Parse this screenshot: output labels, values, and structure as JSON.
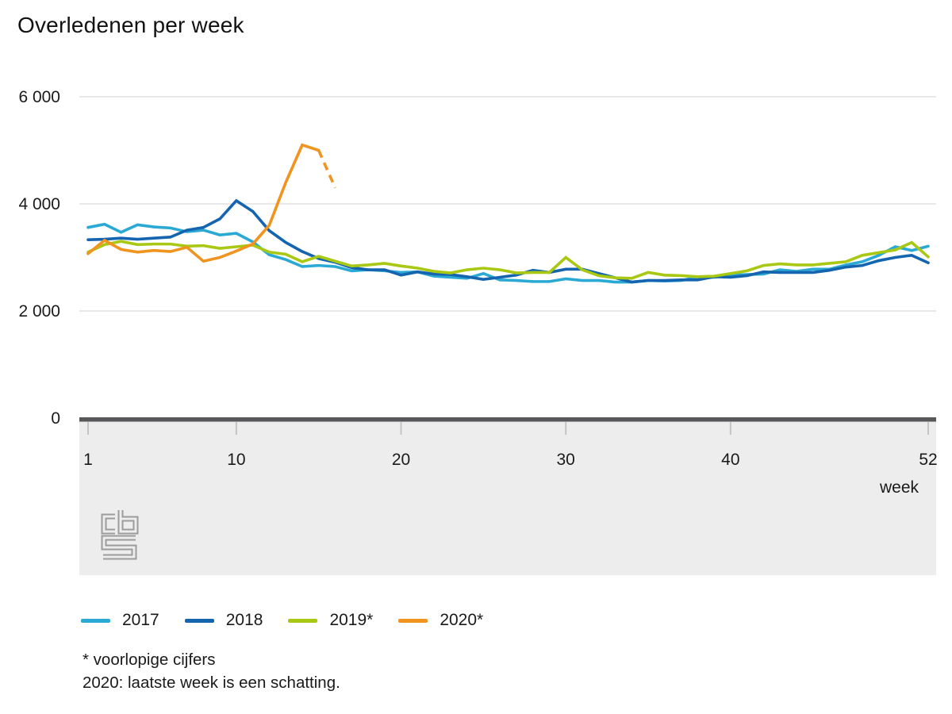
{
  "chart_data": {
    "type": "line",
    "title": "Overledenen per week",
    "xlabel": "week",
    "ylabel": "",
    "xlim": [
      1,
      52
    ],
    "ylim": [
      0,
      6000
    ],
    "grid": "horizontal",
    "grid_values": [
      2000,
      4000,
      6000
    ],
    "legend_position": "bottom",
    "x_ticks": [
      {
        "v": 1,
        "label": "1"
      },
      {
        "v": 10,
        "label": "10"
      },
      {
        "v": 20,
        "label": "20"
      },
      {
        "v": 30,
        "label": "30"
      },
      {
        "v": 40,
        "label": "40"
      },
      {
        "v": 52,
        "label": "52"
      }
    ],
    "y_ticks": [
      {
        "v": 6000,
        "label": "6 000"
      },
      {
        "v": 4000,
        "label": "4 000"
      },
      {
        "v": 2000,
        "label": "2 000"
      },
      {
        "v": 0,
        "label": "0"
      }
    ],
    "series": [
      {
        "name": "2017",
        "color": "#2AA9D4",
        "x_start": 1,
        "values": [
          3560,
          3620,
          3470,
          3610,
          3570,
          3550,
          3480,
          3510,
          3420,
          3450,
          3290,
          3050,
          2960,
          2830,
          2850,
          2830,
          2750,
          2770,
          2750,
          2720,
          2730,
          2650,
          2630,
          2610,
          2700,
          2580,
          2570,
          2550,
          2550,
          2600,
          2570,
          2570,
          2540,
          2540,
          2570,
          2560,
          2570,
          2630,
          2630,
          2670,
          2680,
          2690,
          2770,
          2740,
          2780,
          2780,
          2860,
          2920,
          3040,
          3200,
          3130,
          3210
        ]
      },
      {
        "name": "2018",
        "color": "#1464AF",
        "x_start": 1,
        "values": [
          3330,
          3340,
          3360,
          3340,
          3360,
          3380,
          3510,
          3560,
          3720,
          4060,
          3860,
          3500,
          3280,
          3110,
          2980,
          2910,
          2810,
          2770,
          2770,
          2670,
          2730,
          2690,
          2680,
          2640,
          2590,
          2630,
          2670,
          2760,
          2720,
          2780,
          2780,
          2700,
          2620,
          2540,
          2570,
          2570,
          2580,
          2580,
          2640,
          2630,
          2660,
          2730,
          2720,
          2720,
          2720,
          2760,
          2820,
          2850,
          2940,
          3000,
          3040,
          2900
        ]
      },
      {
        "name": "2019*",
        "color": "#A8C814",
        "x_start": 1,
        "values": [
          3100,
          3240,
          3300,
          3240,
          3250,
          3250,
          3210,
          3220,
          3170,
          3200,
          3230,
          3100,
          3060,
          2920,
          3020,
          2930,
          2840,
          2860,
          2890,
          2840,
          2800,
          2740,
          2710,
          2770,
          2800,
          2770,
          2710,
          2720,
          2720,
          3000,
          2770,
          2660,
          2620,
          2610,
          2720,
          2670,
          2660,
          2640,
          2650,
          2700,
          2750,
          2850,
          2880,
          2860,
          2860,
          2890,
          2920,
          3040,
          3090,
          3140,
          3280,
          3010
        ]
      },
      {
        "name": "2020*",
        "color": "#F0941F",
        "x_start": 1,
        "dash_from_index": 14,
        "values": [
          3070,
          3320,
          3150,
          3100,
          3130,
          3110,
          3190,
          2930,
          3000,
          3120,
          3250,
          3600,
          4400,
          5100,
          5000,
          4300
        ]
      }
    ]
  },
  "footnotes": [
    "* voorlopige cijfers",
    "2020: laatste week is een schatting."
  ],
  "logo": "cbs-logo",
  "colors": {
    "grid": "#D9D9D9",
    "axis_bar": "#58585A",
    "tick": "#C4C4C4",
    "footer_bg": "#EDEDED",
    "text": "#1A1A1A",
    "logo": "#9C9C9C"
  }
}
